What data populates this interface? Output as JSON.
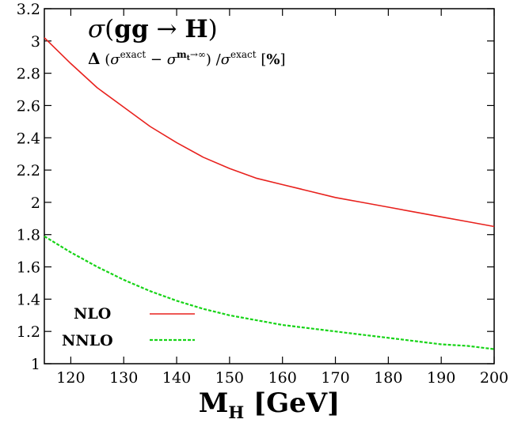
{
  "chart_data": {
    "type": "line",
    "title": "σ(gg → H)",
    "subtitle": "Δ (σ^exact − σ^(m_t→∞)) / σ^exact [%]",
    "xlabel": "M_H [GeV]",
    "ylabel": "",
    "xlim": [
      115,
      200
    ],
    "ylim": [
      1,
      3.2
    ],
    "xticks": [
      120,
      130,
      140,
      150,
      160,
      170,
      180,
      190,
      200
    ],
    "yticks": [
      1,
      1.2,
      1.4,
      1.6,
      1.8,
      2,
      2.2,
      2.4,
      2.6,
      2.8,
      3,
      3.2
    ],
    "legend_position": "bottom-left",
    "grid": false,
    "series": [
      {
        "name": "NLO",
        "color": "#e8211d",
        "style": "solid",
        "x": [
          115,
          120,
          125,
          130,
          135,
          140,
          145,
          150,
          155,
          160,
          165,
          170,
          175,
          180,
          185,
          190,
          195,
          200
        ],
        "y": [
          3.02,
          2.86,
          2.71,
          2.59,
          2.47,
          2.37,
          2.28,
          2.21,
          2.15,
          2.11,
          2.07,
          2.03,
          2.0,
          1.97,
          1.94,
          1.91,
          1.88,
          1.85
        ]
      },
      {
        "name": "NNLO",
        "color": "#17d417",
        "style": "dashed",
        "x": [
          115,
          120,
          125,
          130,
          135,
          140,
          145,
          150,
          155,
          160,
          165,
          170,
          175,
          180,
          185,
          190,
          195,
          200
        ],
        "y": [
          1.79,
          1.69,
          1.6,
          1.52,
          1.45,
          1.39,
          1.34,
          1.3,
          1.27,
          1.24,
          1.22,
          1.2,
          1.18,
          1.16,
          1.14,
          1.12,
          1.11,
          1.09
        ]
      }
    ]
  }
}
